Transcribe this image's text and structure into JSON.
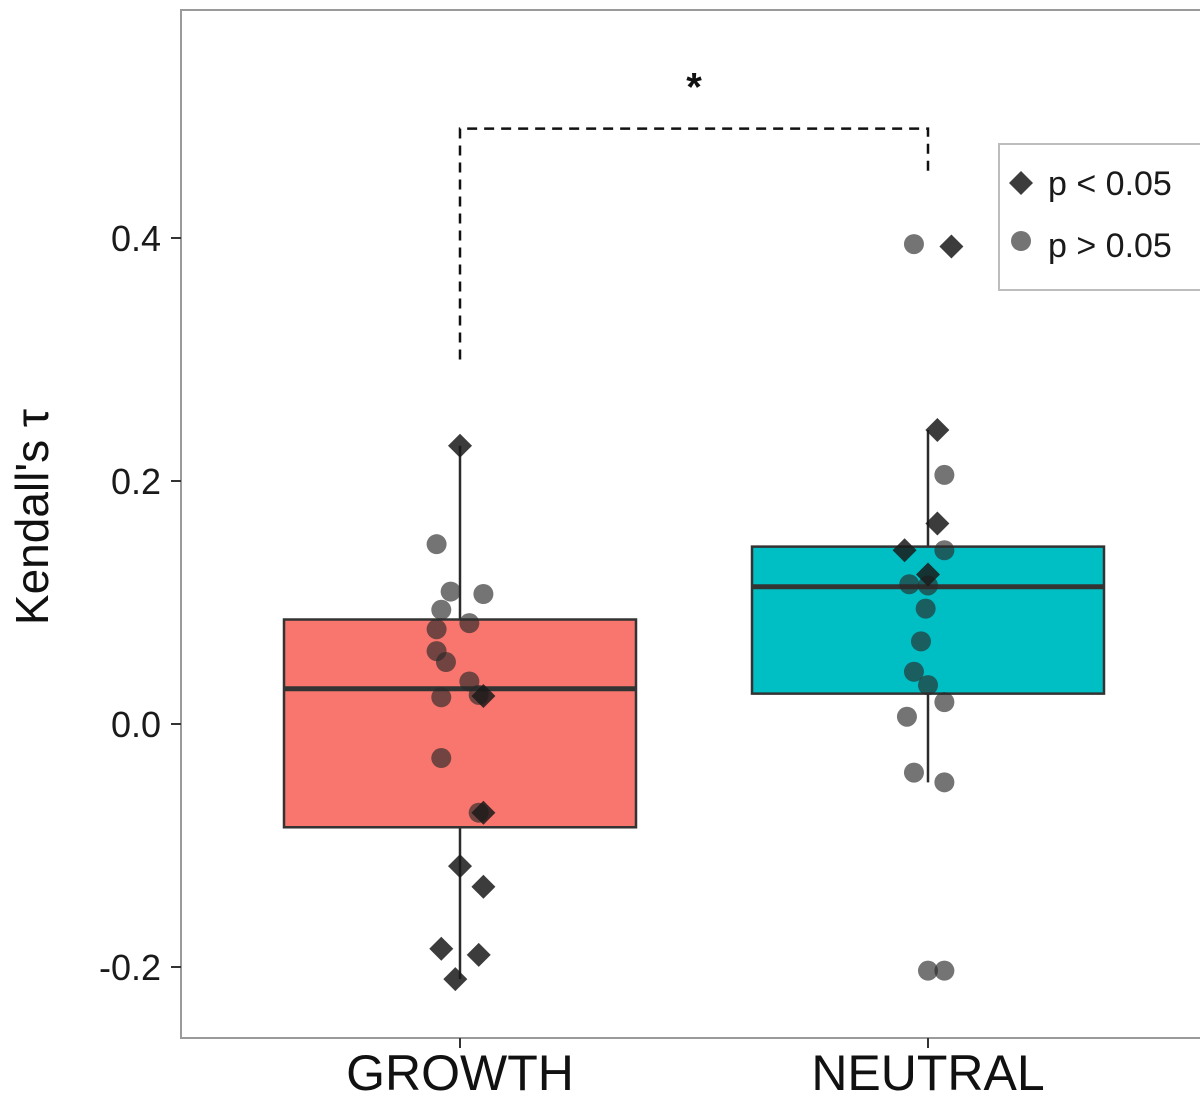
{
  "chart_data": {
    "type": "box",
    "ylabel": "Kendall's τ",
    "xlabel": "",
    "ylim": [
      -0.25,
      0.59
    ],
    "y_ticks": [
      -0.2,
      0.0,
      0.2,
      0.4
    ],
    "y_tick_labels": [
      "-0.2",
      "0.0",
      "0.2",
      "0.4"
    ],
    "categories": [
      "GROWTH",
      "NEUTRAL"
    ],
    "boxes": [
      {
        "category": "GROWTH",
        "color": "#F8766D",
        "q1": -0.085,
        "median": 0.029,
        "q3": 0.086,
        "whisker_low": -0.21,
        "whisker_high": 0.229
      },
      {
        "category": "NEUTRAL",
        "color": "#00BFC4",
        "q1": 0.025,
        "median": 0.113,
        "q3": 0.146,
        "whisker_low": -0.048,
        "whisker_high": 0.242
      }
    ],
    "points": [
      {
        "category": "GROWTH",
        "jitter": 0.0,
        "y": 0.229,
        "sig": true
      },
      {
        "category": "GROWTH",
        "jitter": -0.04,
        "y": -0.185,
        "sig": true
      },
      {
        "category": "GROWTH",
        "jitter": 0.04,
        "y": -0.19,
        "sig": true
      },
      {
        "category": "GROWTH",
        "jitter": -0.01,
        "y": -0.21,
        "sig": true
      },
      {
        "category": "GROWTH",
        "jitter": 0.0,
        "y": -0.117,
        "sig": true
      },
      {
        "category": "GROWTH",
        "jitter": 0.05,
        "y": -0.134,
        "sig": true
      },
      {
        "category": "GROWTH",
        "jitter": 0.05,
        "y": -0.073,
        "sig": true
      },
      {
        "category": "GROWTH",
        "jitter": 0.05,
        "y": 0.023,
        "sig": true
      },
      {
        "category": "GROWTH",
        "jitter": -0.05,
        "y": 0.148,
        "sig": false
      },
      {
        "category": "GROWTH",
        "jitter": -0.02,
        "y": 0.109,
        "sig": false
      },
      {
        "category": "GROWTH",
        "jitter": 0.05,
        "y": 0.107,
        "sig": false
      },
      {
        "category": "GROWTH",
        "jitter": -0.04,
        "y": 0.094,
        "sig": false
      },
      {
        "category": "GROWTH",
        "jitter": 0.02,
        "y": 0.083,
        "sig": false
      },
      {
        "category": "GROWTH",
        "jitter": -0.05,
        "y": 0.078,
        "sig": false
      },
      {
        "category": "GROWTH",
        "jitter": -0.05,
        "y": 0.06,
        "sig": false
      },
      {
        "category": "GROWTH",
        "jitter": -0.03,
        "y": 0.051,
        "sig": false
      },
      {
        "category": "GROWTH",
        "jitter": 0.02,
        "y": 0.035,
        "sig": false
      },
      {
        "category": "GROWTH",
        "jitter": -0.04,
        "y": 0.022,
        "sig": false
      },
      {
        "category": "GROWTH",
        "jitter": 0.04,
        "y": 0.024,
        "sig": false
      },
      {
        "category": "GROWTH",
        "jitter": -0.04,
        "y": -0.028,
        "sig": false
      },
      {
        "category": "GROWTH",
        "jitter": 0.04,
        "y": -0.073,
        "sig": false
      },
      {
        "category": "NEUTRAL",
        "jitter": 0.05,
        "y": 0.393,
        "sig": true
      },
      {
        "category": "NEUTRAL",
        "jitter": 0.02,
        "y": 0.242,
        "sig": true
      },
      {
        "category": "NEUTRAL",
        "jitter": 0.02,
        "y": 0.165,
        "sig": true
      },
      {
        "category": "NEUTRAL",
        "jitter": -0.05,
        "y": 0.143,
        "sig": true
      },
      {
        "category": "NEUTRAL",
        "jitter": 0.0,
        "y": 0.123,
        "sig": true
      },
      {
        "category": "NEUTRAL",
        "jitter": -0.03,
        "y": 0.395,
        "sig": false
      },
      {
        "category": "NEUTRAL",
        "jitter": 0.035,
        "y": 0.205,
        "sig": false
      },
      {
        "category": "NEUTRAL",
        "jitter": 0.035,
        "y": 0.143,
        "sig": false
      },
      {
        "category": "NEUTRAL",
        "jitter": -0.04,
        "y": 0.115,
        "sig": false
      },
      {
        "category": "NEUTRAL",
        "jitter": 0.0,
        "y": 0.114,
        "sig": false
      },
      {
        "category": "NEUTRAL",
        "jitter": -0.005,
        "y": 0.095,
        "sig": false
      },
      {
        "category": "NEUTRAL",
        "jitter": -0.015,
        "y": 0.068,
        "sig": false
      },
      {
        "category": "NEUTRAL",
        "jitter": -0.03,
        "y": 0.043,
        "sig": false
      },
      {
        "category": "NEUTRAL",
        "jitter": 0.0,
        "y": 0.032,
        "sig": false
      },
      {
        "category": "NEUTRAL",
        "jitter": 0.035,
        "y": 0.018,
        "sig": false
      },
      {
        "category": "NEUTRAL",
        "jitter": -0.045,
        "y": 0.006,
        "sig": false
      },
      {
        "category": "NEUTRAL",
        "jitter": -0.03,
        "y": -0.04,
        "sig": false
      },
      {
        "category": "NEUTRAL",
        "jitter": 0.035,
        "y": -0.048,
        "sig": false
      },
      {
        "category": "NEUTRAL",
        "jitter": 0.035,
        "y": -0.203,
        "sig": false
      },
      {
        "category": "NEUTRAL",
        "jitter": 0.0,
        "y": -0.203,
        "sig": false
      }
    ],
    "legend": {
      "position": "top-right",
      "entries": [
        {
          "shape": "diamond",
          "label": "p < 0.05"
        },
        {
          "shape": "circle",
          "label": "p > 0.05"
        }
      ]
    },
    "significance": {
      "from": "GROWTH",
      "to": "NEUTRAL",
      "label": "*",
      "bracket_y": 0.49,
      "left_drop_to": 0.3,
      "right_drop_to": 0.45
    },
    "grid": false
  }
}
